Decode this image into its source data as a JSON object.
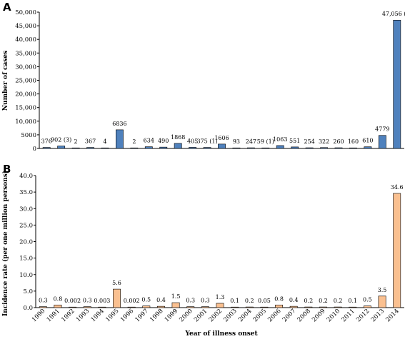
{
  "chart_data": [
    {
      "type": "bar",
      "panel_label": "A",
      "title": "",
      "xlabel": "",
      "ylabel": "Number of cases",
      "ylim": [
        0,
        50000
      ],
      "yticks": [
        "0",
        "5000",
        "10,000",
        "15,000",
        "20,000",
        "25,000",
        "30,000",
        "35,000",
        "40,000",
        "45,000",
        "50,000"
      ],
      "categories": [
        "1990",
        "1991",
        "1992",
        "1993",
        "1994",
        "1995",
        "1996",
        "1997",
        "1998",
        "1999",
        "2000",
        "2001",
        "2002",
        "2003",
        "2004",
        "2005",
        "2006",
        "2007",
        "2008",
        "2009",
        "2010",
        "2011",
        "2012",
        "2013",
        "2014"
      ],
      "values": [
        376,
        902,
        2,
        367,
        4,
        6836,
        2,
        634,
        490,
        1868,
        405,
        375,
        1606,
        93,
        247,
        59,
        1063,
        551,
        254,
        322,
        260,
        160,
        610,
        4779,
        47056
      ],
      "labels": [
        "376",
        "902 (3)",
        "2",
        "367",
        "4",
        "6836",
        "2",
        "634",
        "490",
        "1868",
        "405",
        "375 (1)",
        "1606",
        "93",
        "247",
        "59 (1)",
        "1063",
        "551",
        "254",
        "322",
        "260",
        "160",
        "610",
        "4779",
        "47,056 (6)"
      ],
      "bar_color": "#4f81bd",
      "grid": false
    },
    {
      "type": "bar",
      "panel_label": "B",
      "title": "",
      "xlabel": "Year of illness onset",
      "ylabel": "Incidence rate (per one million persons)",
      "ylim": [
        0,
        40
      ],
      "yticks": [
        "0.0",
        "5.0",
        "10.0",
        "15.0",
        "20.0",
        "25.0",
        "30.0",
        "35.0",
        "40.0"
      ],
      "categories": [
        "1990",
        "1991",
        "1992",
        "1993",
        "1994",
        "1995",
        "1996",
        "1997",
        "1998",
        "1999",
        "2000",
        "2001",
        "2002",
        "2003",
        "2004",
        "2005",
        "2006",
        "2007",
        "2008",
        "2009",
        "2010",
        "2011",
        "2012",
        "2013",
        "2014"
      ],
      "values": [
        0.3,
        0.8,
        0.002,
        0.3,
        0.003,
        5.6,
        0.002,
        0.5,
        0.4,
        1.5,
        0.3,
        0.3,
        1.3,
        0.1,
        0.2,
        0.05,
        0.8,
        0.4,
        0.2,
        0.2,
        0.2,
        0.1,
        0.5,
        3.5,
        34.6
      ],
      "labels": [
        "0.3",
        "0.8",
        "0.002",
        "0.3",
        "0.003",
        "5.6",
        "0.002",
        "0.5",
        "0.4",
        "1.5",
        "0.3",
        "0.3",
        "1.3",
        "0.1",
        "0.2",
        "0.05",
        "0.8",
        "0.4",
        "0.2",
        "0.2",
        "0.2",
        "0.1",
        "0.5",
        "3.5",
        "34.6"
      ],
      "bar_color": "#fac090",
      "grid": false
    }
  ]
}
